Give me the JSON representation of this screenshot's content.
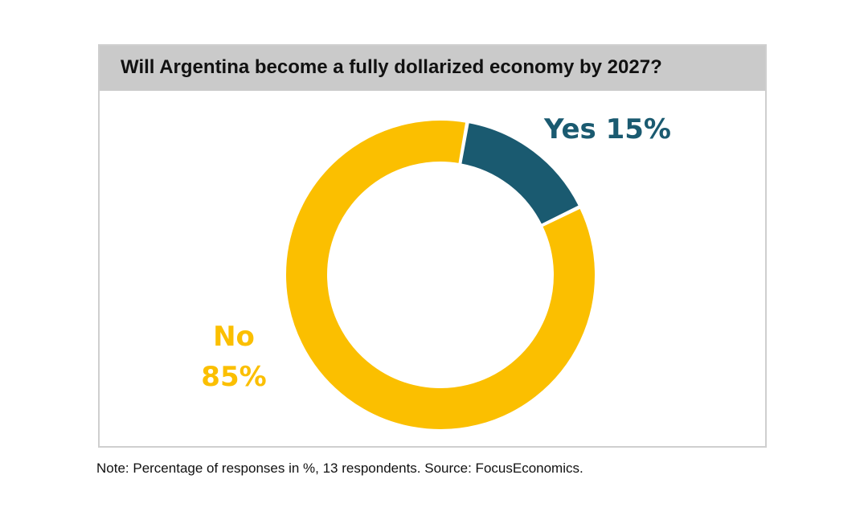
{
  "chart_data": {
    "type": "pie",
    "title": "Will Argentina become a fully dollarized economy by 2027?",
    "categories": [
      "Yes",
      "No"
    ],
    "values": [
      15,
      85
    ],
    "labels": [
      "Yes 15%",
      "No",
      "85%"
    ],
    "colors": {
      "Yes": "#1a5a70",
      "No": "#fbbf00"
    },
    "note": "Note: Percentage of responses in %, 13 respondents. Source: FocusEconomics."
  }
}
